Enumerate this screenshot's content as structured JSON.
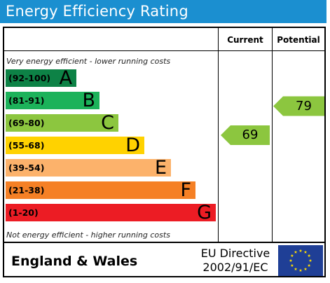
{
  "title": "Energy Efficiency Rating",
  "headers": {
    "current": "Current",
    "potential": "Potential"
  },
  "notes": {
    "top": "Very energy efficient - lower running costs",
    "bottom": "Not energy efficient - higher running costs"
  },
  "footer": {
    "region": "England & Wales",
    "directive_line1": "EU Directive",
    "directive_line2": "2002/91/EC"
  },
  "chart_data": {
    "type": "table",
    "bands": [
      {
        "range": "(92-100)",
        "letter": "A",
        "min": 92,
        "max": 100,
        "color": "#0d8246"
      },
      {
        "range": "(81-91)",
        "letter": "B",
        "min": 81,
        "max": 91,
        "color": "#1cb25a"
      },
      {
        "range": "(69-80)",
        "letter": "C",
        "min": 69,
        "max": 80,
        "color": "#8cc63f"
      },
      {
        "range": "(55-68)",
        "letter": "D",
        "min": 55,
        "max": 68,
        "color": "#ffd200"
      },
      {
        "range": "(39-54)",
        "letter": "E",
        "min": 39,
        "max": 54,
        "color": "#fcb26b"
      },
      {
        "range": "(21-38)",
        "letter": "F",
        "min": 21,
        "max": 38,
        "color": "#f58025"
      },
      {
        "range": "(1-20)",
        "letter": "G",
        "min": 1,
        "max": 20,
        "color": "#ec1c24"
      }
    ],
    "current": {
      "value": 69,
      "band": "C",
      "color": "#8cc63f"
    },
    "potential": {
      "value": 79,
      "band": "C",
      "color": "#8cc63f"
    }
  }
}
